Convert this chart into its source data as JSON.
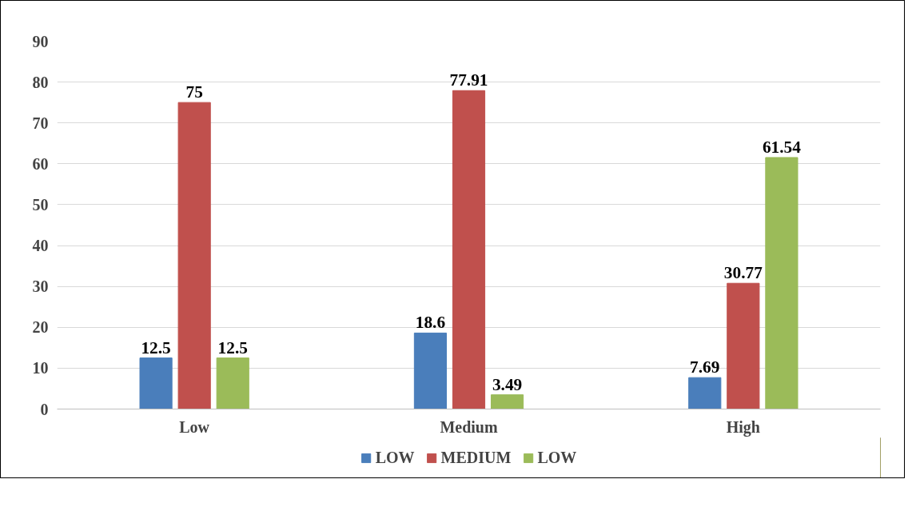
{
  "chart_data": {
    "type": "bar",
    "categories": [
      "Low",
      "Medium",
      "High"
    ],
    "series": [
      {
        "name": "LOW",
        "color": "#4a7ebb",
        "values": [
          12.5,
          18.6,
          7.69
        ]
      },
      {
        "name": "MEDIUM",
        "color": "#c0504d",
        "values": [
          75,
          77.91,
          30.77
        ]
      },
      {
        "name": "LOW",
        "color": "#9bbb59",
        "values": [
          12.5,
          3.49,
          61.54
        ]
      }
    ],
    "ylim": [
      0,
      90
    ],
    "yticks": [
      0,
      10,
      20,
      30,
      40,
      50,
      60,
      70,
      80,
      90
    ],
    "grid": "y",
    "legend": "bottom",
    "data_labels": true
  }
}
